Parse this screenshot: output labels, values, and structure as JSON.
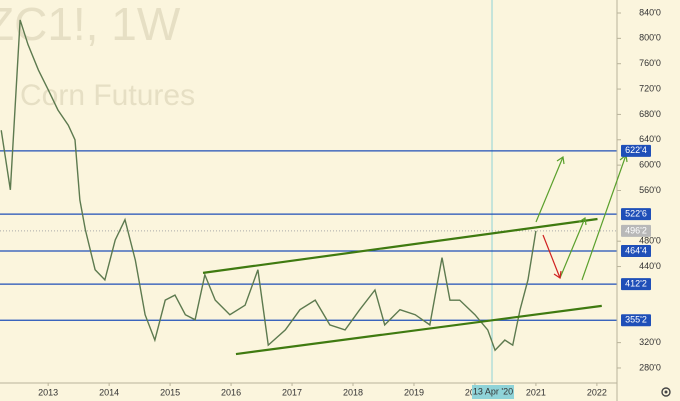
{
  "chart_data": {
    "type": "line",
    "title": "ZC1!, 1W",
    "subtitle": "Corn Futures",
    "x": [
      2012.23,
      2012.38,
      2012.54,
      2012.67,
      2012.84,
      2013.0,
      2013.16,
      2013.33,
      2013.44,
      2013.52,
      2013.61,
      2013.77,
      2013.93,
      2014.1,
      2014.26,
      2014.43,
      2014.59,
      2014.75,
      2014.92,
      2015.08,
      2015.25,
      2015.41,
      2015.57,
      2015.74,
      2015.98,
      2016.23,
      2016.44,
      2016.61,
      2016.89,
      2017.13,
      2017.38,
      2017.62,
      2017.87,
      2018.11,
      2018.36,
      2018.52,
      2018.77,
      2019.02,
      2019.26,
      2019.46,
      2019.59,
      2019.75,
      2020.0,
      2020.21,
      2020.33,
      2020.49,
      2020.62,
      2020.74,
      2020.87,
      2021.0
    ],
    "series": [
      {
        "color": "#5d7a4f",
        "values": [
          655,
          561,
          829,
          790,
          750,
          719,
          687,
          663,
          640,
          545,
          498,
          435,
          419,
          482,
          514,
          450,
          364,
          324,
          387,
          395,
          364,
          356,
          427,
          387,
          364,
          379,
          435,
          316,
          340,
          372,
          387,
          348,
          340,
          372,
          403,
          348,
          372,
          364,
          348,
          454,
          387,
          387,
          364,
          340,
          308,
          324,
          316,
          372,
          419,
          496.25
        ]
      }
    ],
    "levels": [
      {
        "value": 622.5,
        "label": "622'4"
      },
      {
        "value": 522.75,
        "label": "522'6"
      },
      {
        "value": 464.5,
        "label": "464'4"
      },
      {
        "value": 412.25,
        "label": "412'2"
      },
      {
        "value": 355.25,
        "label": "355'2"
      }
    ],
    "level_color": "#1f4fb8",
    "last_price": {
      "value": 496.25,
      "label": "496'2"
    },
    "trendlines": [
      {
        "color": "#3f7a10",
        "x": [
          2015.54,
          2022.01
        ],
        "values": [
          430,
          515
        ]
      },
      {
        "color": "#3f7a10",
        "x": [
          2016.08,
          2022.08
        ],
        "values": [
          302,
          378
        ]
      }
    ],
    "crosshair": {
      "x": 2020.28,
      "label": "13 Apr '20"
    },
    "xlim": [
      2012.21,
      2022.33
    ],
    "xticks": [
      2013,
      2014,
      2015,
      2016,
      2017,
      2018,
      2019,
      2020,
      2021,
      2022
    ],
    "ylim": [
      256.3,
      860.5
    ],
    "yticks": [
      {
        "value": 840,
        "label": "840'0"
      },
      {
        "value": 800,
        "label": "800'0"
      },
      {
        "value": 760,
        "label": "760'0"
      },
      {
        "value": 720,
        "label": "720'0"
      },
      {
        "value": 680,
        "label": "680'0"
      },
      {
        "value": 640,
        "label": "640'0"
      },
      {
        "value": 600,
        "label": "600'0"
      },
      {
        "value": 560,
        "label": "560'0"
      },
      {
        "value": 480,
        "label": "480'0"
      },
      {
        "value": 440,
        "label": "440'0"
      },
      {
        "value": 320,
        "label": "320'0"
      },
      {
        "value": 280,
        "label": "280'0"
      }
    ]
  }
}
